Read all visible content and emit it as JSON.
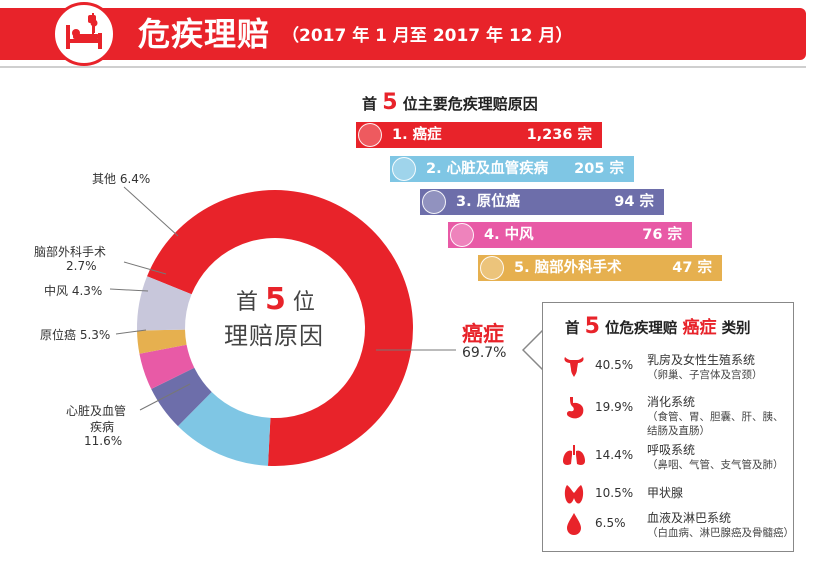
{
  "header": {
    "title": "危疾理赔",
    "subtitle": "（2017 年 1 月至 2017 年 12 月）",
    "icon": "hospital-bed-icon",
    "accent": "#e8232a"
  },
  "top5": {
    "title_prefix": "首",
    "title_num": "5",
    "title_suffix": "位主要危疾理赔原因",
    "items": [
      {
        "label": "1. 癌症",
        "value": "1,236 宗",
        "color": "#e8232a",
        "icon": "cancer-cell-icon"
      },
      {
        "label": "2. 心脏及血管疾病",
        "value": "205 宗",
        "color": "#7fc6e4",
        "icon": "heart-icon"
      },
      {
        "label": "3. 原位癌",
        "value": "94 宗",
        "color": "#6d6eaa",
        "icon": "cell-burst-icon"
      },
      {
        "label": "4. 中风",
        "value": "76 宗",
        "color": "#e85aa6",
        "icon": "brain-stroke-icon"
      },
      {
        "label": "5. 脑部外科手术",
        "value": "47 宗",
        "color": "#e6b04f",
        "icon": "brain-icon"
      }
    ]
  },
  "chart_data": {
    "type": "pie",
    "center_text": {
      "line1_prefix": "首",
      "line1_num": "5",
      "line1_suffix": "位",
      "line2": "理赔原因"
    },
    "slices": [
      {
        "name": "癌症",
        "value": 69.7,
        "color": "#e8232a"
      },
      {
        "name": "心脏及血管疾病",
        "value": 11.6,
        "color": "#7fc6e4"
      },
      {
        "name": "原位癌",
        "value": 5.3,
        "color": "#6d6eaa"
      },
      {
        "name": "中风",
        "value": 4.3,
        "color": "#e85aa6"
      },
      {
        "name": "脑部外科手术",
        "value": 2.7,
        "color": "#e6b04f"
      },
      {
        "name": "其他",
        "value": 6.4,
        "color": "#c8c7db"
      }
    ],
    "labels": {
      "cancer_name": "癌症",
      "cancer_pct": "69.7%",
      "heart_line1": "心脏及血管",
      "heart_line2": "疾病",
      "heart_pct": "11.6%",
      "insitu": "原位癌 5.3%",
      "stroke": "中风 4.3%",
      "brain_line1": "脑部外科手术",
      "brain_pct": "2.7%",
      "other": "其他 6.4%"
    }
  },
  "cancer_types": {
    "title_prefix": "首",
    "title_num": "5",
    "title_mid": "位危疾理赔",
    "title_hl": "癌症",
    "title_suffix": "类别",
    "items": [
      {
        "pct": "40.5%",
        "name": "乳房及女性生殖系统",
        "detail": [
          "（卵巢、子宫体及宫颈）"
        ],
        "icon": "uterus-icon"
      },
      {
        "pct": "19.9%",
        "name": "消化系统",
        "detail": [
          "（食管、胃、胆囊、肝、胰、",
          "结肠及直肠）"
        ],
        "icon": "stomach-icon"
      },
      {
        "pct": "14.4%",
        "name": "呼吸系统",
        "detail": [
          "（鼻咽、气管、支气管及肺）"
        ],
        "icon": "lungs-icon"
      },
      {
        "pct": "10.5%",
        "name": "甲状腺",
        "detail": [],
        "icon": "thyroid-icon"
      },
      {
        "pct": "6.5%",
        "name": "血液及淋巴系统",
        "detail": [
          "（白血病、淋巴腺癌及骨髓癌）"
        ],
        "icon": "blood-drop-icon"
      }
    ]
  }
}
